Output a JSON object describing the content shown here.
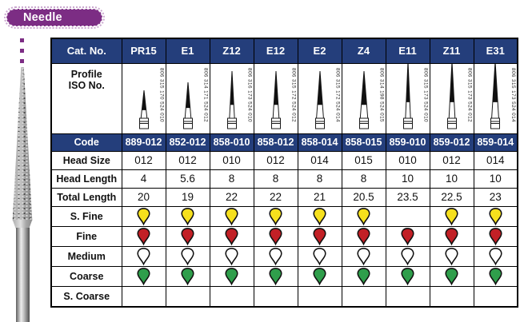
{
  "header": {
    "badge_label": "Needle"
  },
  "colors": {
    "navy": "#243e7b",
    "purple": "#7c2d84",
    "grit": {
      "s_fine": "#f6e01d",
      "fine": "#c22026",
      "medium": "#ffffff",
      "coarse": "#2f9e4b",
      "s_coarse": "#ffffff"
    }
  },
  "table": {
    "row_labels": {
      "cat_no": "Cat. No.",
      "profile_line1": "Profile",
      "profile_line2": "ISO No.",
      "code": "Code",
      "head_size": "Head Size",
      "head_length": "Head Length",
      "total_length": "Total Length",
      "s_fine": "S. Fine",
      "fine": "Fine",
      "medium": "Medium",
      "coarse": "Coarse",
      "s_coarse": "S. Coarse"
    },
    "columns": [
      {
        "cat_no": "PR15",
        "iso_no": "806 315 170 524 010",
        "code": "889-012",
        "head_size": "012",
        "head_length": "4",
        "total_length": "20",
        "grits": {
          "s_fine": true,
          "fine": true,
          "medium": true,
          "coarse": true,
          "s_coarse": false
        }
      },
      {
        "cat_no": "E1",
        "iso_no": "806 314 171 524 012",
        "code": "852-012",
        "head_size": "012",
        "head_length": "5.6",
        "total_length": "19",
        "grits": {
          "s_fine": true,
          "fine": true,
          "medium": true,
          "coarse": true,
          "s_coarse": false
        }
      },
      {
        "cat_no": "Z12",
        "iso_no": "806 316 173 524 010",
        "code": "858-010",
        "head_size": "010",
        "head_length": "8",
        "total_length": "22",
        "grits": {
          "s_fine": true,
          "fine": true,
          "medium": true,
          "coarse": true,
          "s_coarse": false
        }
      },
      {
        "cat_no": "E12",
        "iso_no": "806 315 172 524 012",
        "code": "858-012",
        "head_size": "012",
        "head_length": "8",
        "total_length": "22",
        "grits": {
          "s_fine": true,
          "fine": true,
          "medium": true,
          "coarse": true,
          "s_coarse": false
        }
      },
      {
        "cat_no": "E2",
        "iso_no": "806 315 172 524 014",
        "code": "858-014",
        "head_size": "014",
        "head_length": "8",
        "total_length": "21",
        "grits": {
          "s_fine": true,
          "fine": true,
          "medium": true,
          "coarse": true,
          "s_coarse": false
        }
      },
      {
        "cat_no": "Z4",
        "iso_no": "806 314 198 524 015",
        "code": "858-015",
        "head_size": "015",
        "head_length": "8",
        "total_length": "20.5",
        "grits": {
          "s_fine": true,
          "fine": true,
          "medium": true,
          "coarse": true,
          "s_coarse": false
        }
      },
      {
        "cat_no": "E11",
        "iso_no": "806 315 173 524 010",
        "code": "859-010",
        "head_size": "010",
        "head_length": "10",
        "total_length": "23.5",
        "grits": {
          "s_fine": false,
          "fine": true,
          "medium": true,
          "coarse": true,
          "s_coarse": false
        }
      },
      {
        "cat_no": "Z11",
        "iso_no": "806 315 173 524 012",
        "code": "859-012",
        "head_size": "012",
        "head_length": "10",
        "total_length": "22.5",
        "grits": {
          "s_fine": true,
          "fine": true,
          "medium": true,
          "coarse": true,
          "s_coarse": false
        }
      },
      {
        "cat_no": "E31",
        "iso_no": "806 315 173 524 014",
        "code": "859-014",
        "head_size": "014",
        "head_length": "10",
        "total_length": "23",
        "grits": {
          "s_fine": true,
          "fine": true,
          "medium": true,
          "coarse": true,
          "s_coarse": false
        }
      }
    ]
  }
}
